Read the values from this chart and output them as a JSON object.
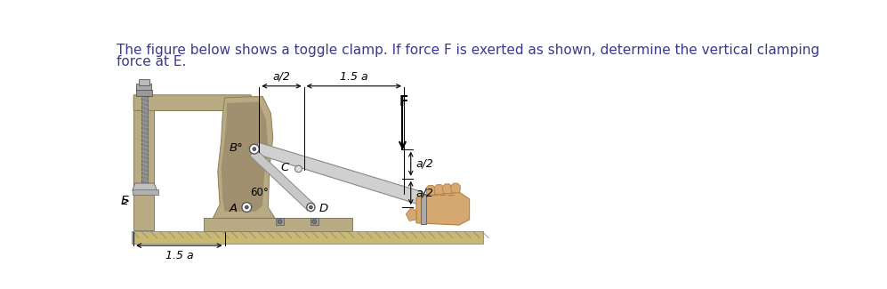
{
  "text_line1": "The figure below shows a toggle clamp. If force F is exerted as shown, determine the vertical clamping",
  "text_line2": "force at E.",
  "text_color": "#3a3a8c",
  "bg_color": "#ffffff",
  "font_size_text": 11,
  "label_A": "A",
  "label_B": "B°",
  "label_C": "C",
  "label_D": "D",
  "label_E": "E",
  "label_F": "F",
  "dim_a2_top": "a/2",
  "dim_15a_top": "1.5 a",
  "dim_a2_right_top": "a/2",
  "dim_a2_right_bot": "a/2",
  "dim_15a_bot": "1.5 a",
  "angle_label": "60°",
  "clamp_color": "#b8aa82",
  "clamp_dark": "#8a7d5a",
  "clamp_mid": "#a09070",
  "link_color": "#cccccc",
  "link_dark": "#909090",
  "ground_top": "#c8b880",
  "ground_bot": "#b0a060",
  "hand_base": "#d4a870",
  "hand_dark": "#b08040",
  "arrow_color": "#000000",
  "dim_color": "#000000",
  "screw_color": "#888888",
  "screw_dark": "#444444"
}
